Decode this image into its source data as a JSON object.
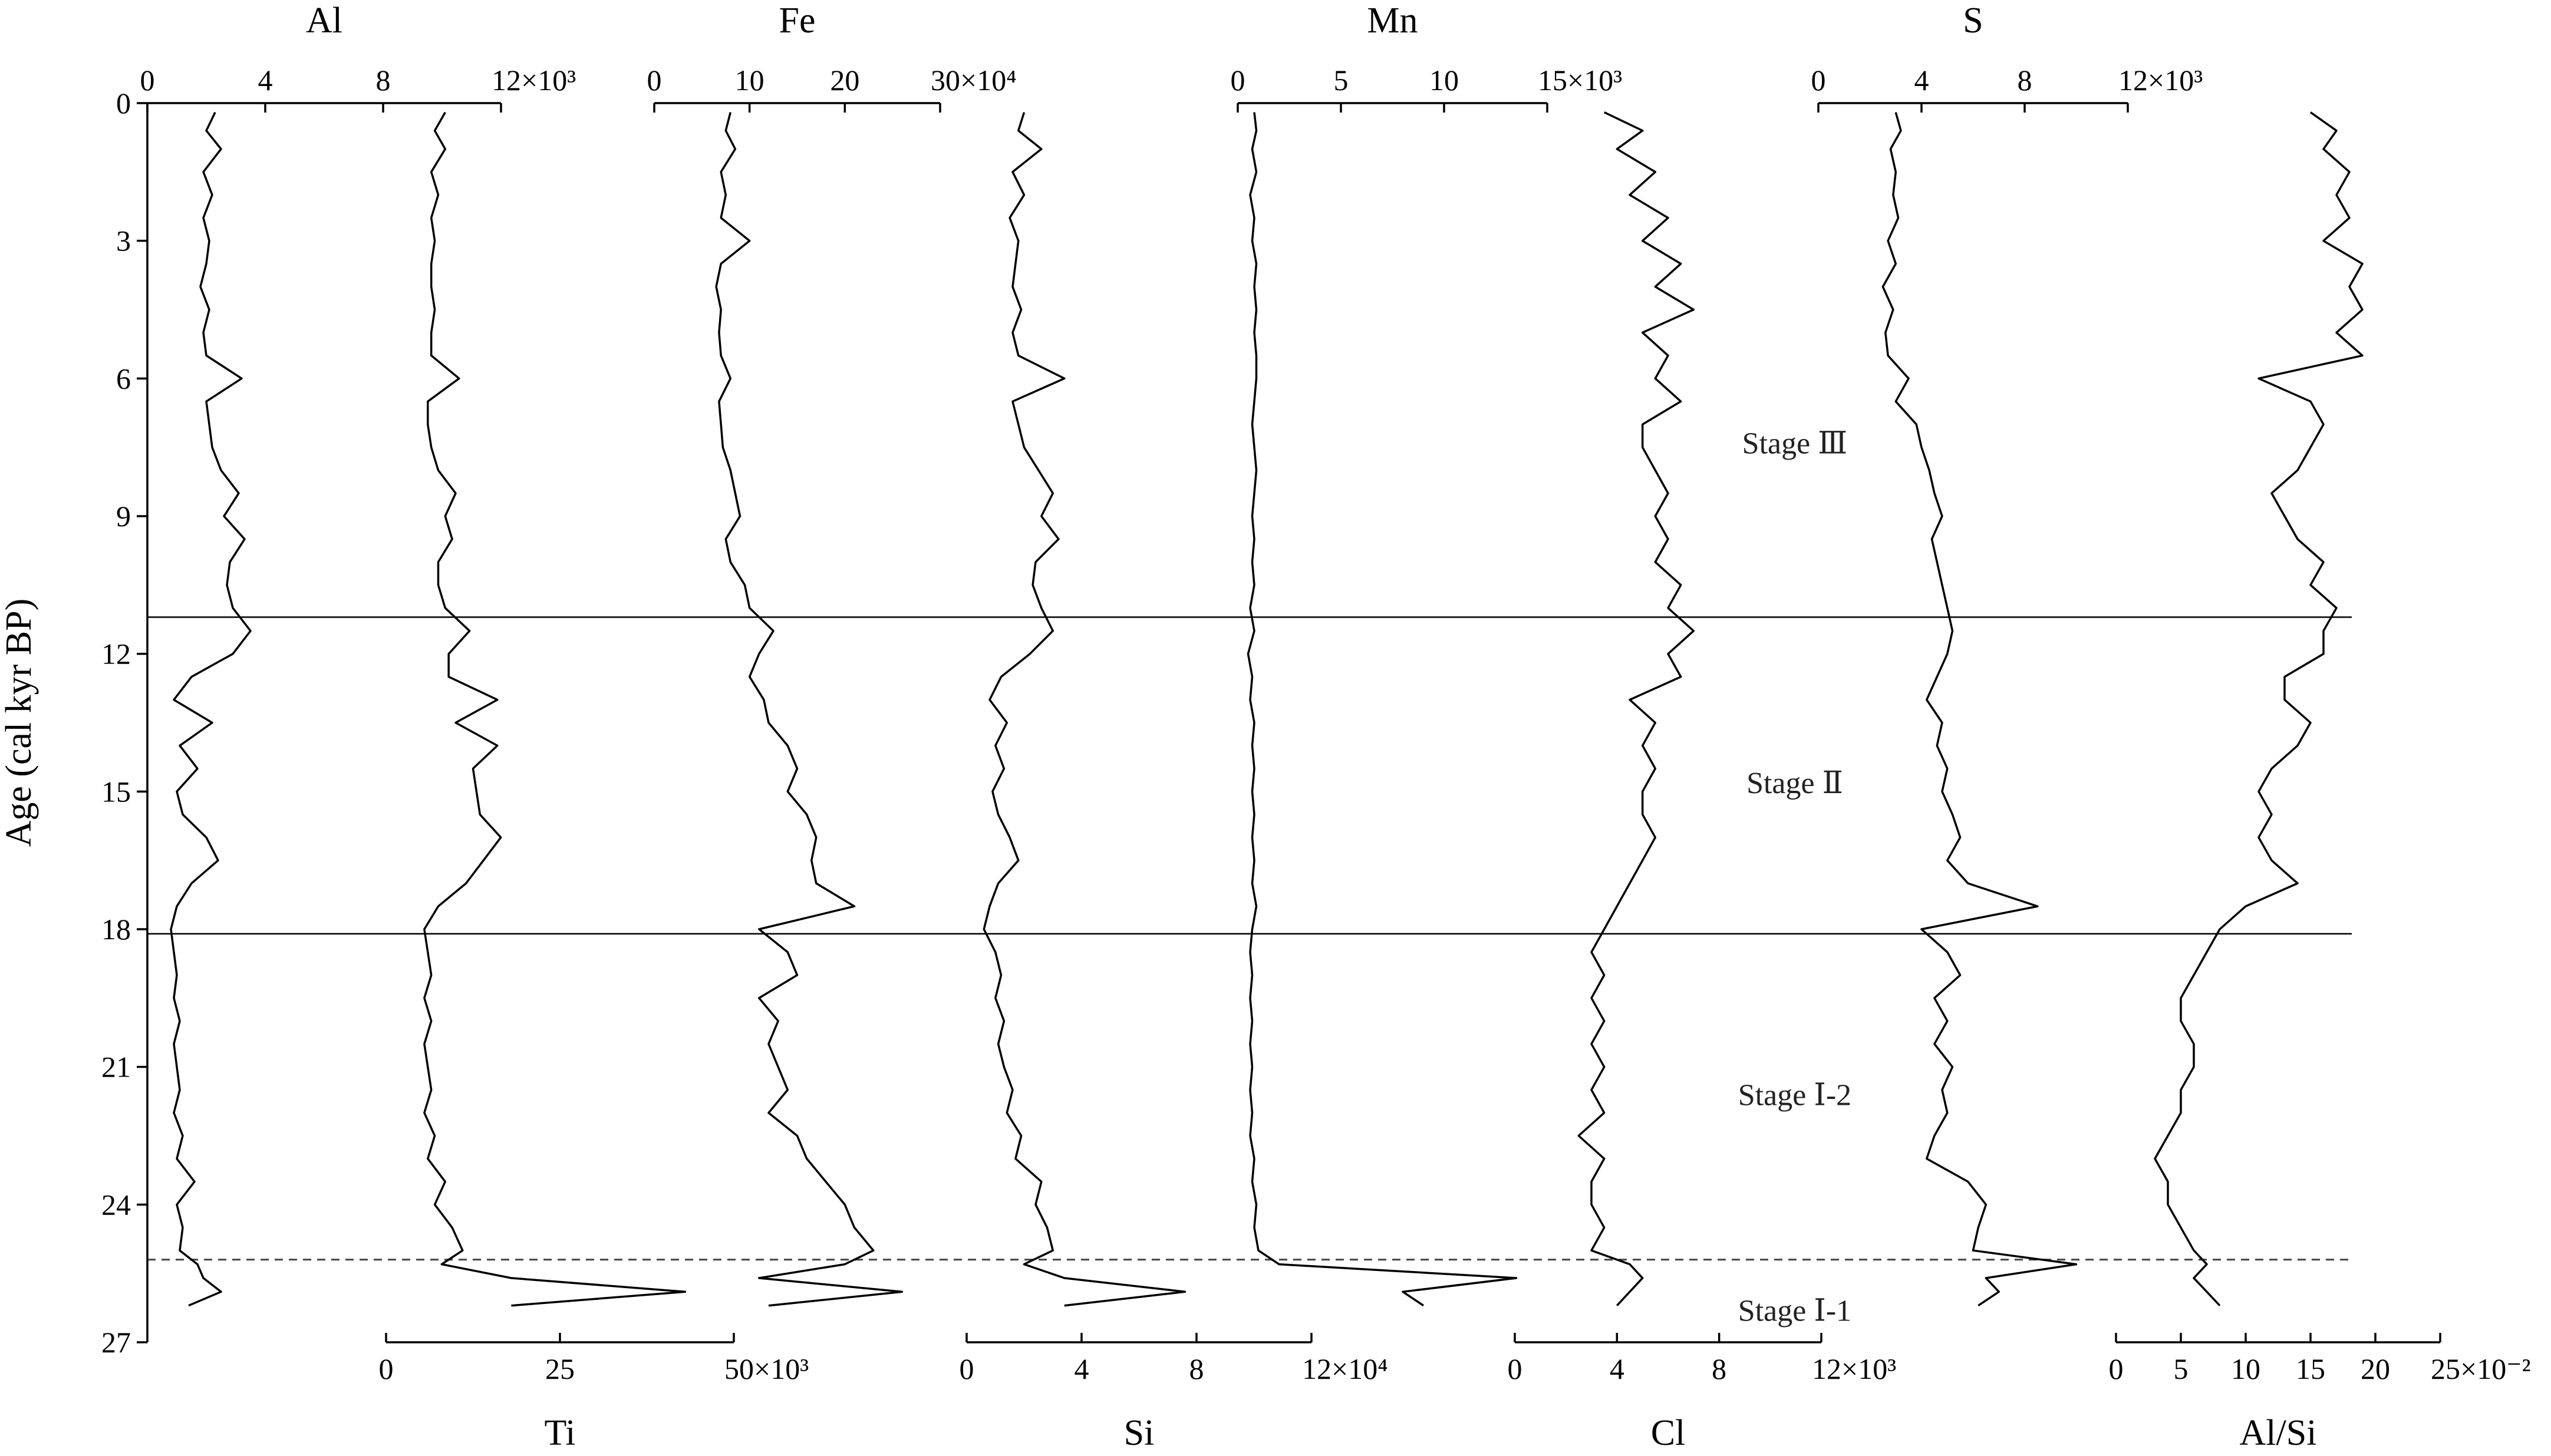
{
  "chart_data": {
    "type": "line",
    "orientation": "vertical-stratigraphic",
    "ylabel": "Age  (cal kyr BP)",
    "ylim": [
      0,
      27
    ],
    "y_ticks": [
      0,
      3,
      6,
      9,
      12,
      15,
      18,
      21,
      24,
      27
    ],
    "grid": false,
    "depth_ages": [
      0.2,
      0.6,
      1.0,
      1.5,
      2.0,
      2.5,
      3.0,
      3.5,
      4.0,
      4.5,
      5.0,
      5.5,
      6.0,
      6.5,
      7.0,
      7.5,
      8.0,
      8.5,
      9.0,
      9.5,
      10.0,
      10.5,
      11.0,
      11.5,
      12.0,
      12.5,
      13.0,
      13.5,
      14.0,
      14.5,
      15.0,
      15.5,
      16.0,
      16.5,
      17.0,
      17.5,
      18.0,
      18.5,
      19.0,
      19.5,
      20.0,
      20.5,
      21.0,
      21.5,
      22.0,
      22.5,
      23.0,
      23.5,
      24.0,
      24.5,
      25.0,
      25.3,
      25.6,
      25.9,
      26.2
    ],
    "boundaries": [
      {
        "age": 11.2,
        "style": "solid"
      },
      {
        "age": 18.1,
        "style": "solid"
      },
      {
        "age": 25.2,
        "style": "dashed"
      }
    ],
    "stages": [
      {
        "label": "Stage Ⅲ",
        "age": 7.4
      },
      {
        "label": "Stage Ⅱ",
        "age": 14.8
      },
      {
        "label": "Stage Ⅰ-2",
        "age": 21.6
      },
      {
        "label": "Stage Ⅰ-1",
        "age": 26.3
      }
    ],
    "series": [
      {
        "name": "Al",
        "axis_position": "top",
        "tick_labels": [
          "0",
          "4",
          "8",
          "12×10³"
        ],
        "xlim": [
          0,
          12000
        ],
        "values": [
          2300,
          2000,
          2500,
          1900,
          2200,
          1900,
          2100,
          2000,
          1800,
          2100,
          1900,
          2000,
          3200,
          2000,
          2100,
          2200,
          2500,
          3100,
          2600,
          3300,
          2800,
          2700,
          2900,
          3500,
          2900,
          1500,
          900,
          2200,
          1100,
          1700,
          1000,
          1200,
          2000,
          2400,
          1500,
          1000,
          800,
          900,
          1000,
          900,
          1100,
          900,
          1000,
          1100,
          900,
          1200,
          1000,
          1600,
          1000,
          1200,
          1100,
          1700,
          1900,
          2500,
          1400
        ]
      },
      {
        "name": "Ti",
        "axis_position": "bottom",
        "tick_labels": [
          "0",
          "25",
          "50×10³"
        ],
        "xlim": [
          0,
          50000
        ],
        "values": [
          8500,
          7000,
          8500,
          6500,
          7500,
          6500,
          7000,
          6500,
          6500,
          7000,
          6500,
          6500,
          10500,
          6000,
          6000,
          6500,
          7500,
          10000,
          8500,
          9500,
          7500,
          7500,
          8500,
          12000,
          9000,
          9000,
          16000,
          10000,
          16000,
          12500,
          13000,
          13500,
          16500,
          14000,
          11500,
          7500,
          5500,
          6000,
          6500,
          5500,
          6500,
          5500,
          6000,
          6500,
          5500,
          7000,
          6000,
          8500,
          7000,
          9500,
          11000,
          8000,
          18000,
          43000,
          18000
        ]
      },
      {
        "name": "Fe",
        "axis_position": "top",
        "tick_labels": [
          "0",
          "10",
          "20",
          "30×10⁴"
        ],
        "xlim": [
          0,
          300000
        ],
        "values": [
          80000,
          75000,
          85000,
          70000,
          75000,
          70000,
          100000,
          70000,
          65000,
          70000,
          68000,
          70000,
          80000,
          68000,
          70000,
          72000,
          80000,
          85000,
          90000,
          75000,
          80000,
          95000,
          100000,
          125000,
          110000,
          100000,
          115000,
          120000,
          140000,
          150000,
          140000,
          160000,
          170000,
          165000,
          170000,
          210000,
          110000,
          140000,
          150000,
          110000,
          130000,
          120000,
          130000,
          140000,
          120000,
          150000,
          160000,
          180000,
          200000,
          210000,
          230000,
          200000,
          110000,
          260000,
          120000
        ]
      },
      {
        "name": "Si",
        "axis_position": "bottom",
        "tick_labels": [
          "0",
          "4",
          "8",
          "12×10⁴"
        ],
        "xlim": [
          0,
          120000
        ],
        "values": [
          20000,
          18000,
          26000,
          16000,
          20000,
          15000,
          18000,
          17000,
          16000,
          19000,
          16000,
          18000,
          34000,
          16000,
          18000,
          20000,
          25000,
          30000,
          26000,
          32000,
          24000,
          23000,
          26000,
          30000,
          22000,
          12000,
          8000,
          14000,
          10000,
          13000,
          9000,
          11000,
          15000,
          18000,
          11000,
          8000,
          6000,
          10000,
          12000,
          10000,
          13000,
          11000,
          13000,
          16000,
          14000,
          19000,
          17000,
          26000,
          24000,
          28000,
          30000,
          20000,
          34000,
          76000,
          34000
        ]
      },
      {
        "name": "Mn",
        "axis_position": "top",
        "tick_labels": [
          "0",
          "5",
          "10",
          "15×10³"
        ],
        "xlim": [
          0,
          15000
        ],
        "values": [
          800,
          900,
          700,
          900,
          600,
          800,
          700,
          900,
          800,
          900,
          800,
          900,
          900,
          800,
          700,
          800,
          900,
          800,
          700,
          800,
          700,
          800,
          600,
          800,
          500,
          700,
          600,
          800,
          700,
          800,
          700,
          800,
          700,
          800,
          700,
          900,
          700,
          600,
          700,
          600,
          700,
          600,
          700,
          600,
          700,
          600,
          800,
          700,
          900,
          800,
          1000,
          2000,
          13500,
          8000,
          9000
        ]
      },
      {
        "name": "Cl",
        "axis_position": "bottom",
        "tick_labels": [
          "0",
          "4",
          "8",
          "12×10³"
        ],
        "xlim": [
          0,
          12000
        ],
        "values": [
          3500,
          5000,
          4000,
          5500,
          4500,
          6000,
          5000,
          6500,
          5500,
          7000,
          5000,
          6000,
          5500,
          6500,
          5000,
          5000,
          5500,
          6000,
          5500,
          6000,
          5500,
          6500,
          6000,
          7000,
          6000,
          6500,
          4500,
          5500,
          5000,
          5500,
          5000,
          5000,
          5500,
          5000,
          4500,
          4000,
          3500,
          3000,
          3500,
          3000,
          3500,
          3000,
          3500,
          3000,
          3500,
          2500,
          3500,
          3000,
          3000,
          3500,
          3000,
          4500,
          5000,
          4500,
          4000
        ]
      },
      {
        "name": "S",
        "axis_position": "top",
        "tick_labels": [
          "0",
          "4",
          "8",
          "12×10³"
        ],
        "xlim": [
          0,
          12000
        ],
        "values": [
          3000,
          3200,
          2800,
          3000,
          2900,
          3100,
          2700,
          3000,
          2500,
          2900,
          2600,
          2700,
          3500,
          3000,
          3800,
          4000,
          4300,
          4500,
          4800,
          4400,
          4600,
          4800,
          5000,
          5200,
          5000,
          4600,
          4200,
          4800,
          4600,
          5000,
          4800,
          5200,
          5500,
          5000,
          5800,
          8500,
          4000,
          5000,
          5500,
          4500,
          5000,
          4500,
          5200,
          4800,
          5000,
          4500,
          4200,
          5800,
          6500,
          6200,
          6000,
          10000,
          6500,
          7000,
          6200
        ]
      },
      {
        "name": "Al/Si",
        "axis_position": "bottom",
        "tick_labels": [
          "0",
          "5",
          "10",
          "15",
          "20",
          "25×10⁻²"
        ],
        "xlim": [
          0,
          0.25
        ],
        "values": [
          0.15,
          0.17,
          0.16,
          0.18,
          0.17,
          0.18,
          0.16,
          0.19,
          0.18,
          0.19,
          0.17,
          0.19,
          0.11,
          0.15,
          0.16,
          0.15,
          0.14,
          0.12,
          0.13,
          0.14,
          0.16,
          0.15,
          0.17,
          0.16,
          0.16,
          0.13,
          0.13,
          0.15,
          0.14,
          0.12,
          0.11,
          0.12,
          0.11,
          0.12,
          0.14,
          0.1,
          0.08,
          0.07,
          0.06,
          0.05,
          0.05,
          0.06,
          0.06,
          0.05,
          0.05,
          0.04,
          0.03,
          0.04,
          0.04,
          0.05,
          0.06,
          0.07,
          0.06,
          0.07,
          0.08
        ]
      }
    ]
  }
}
